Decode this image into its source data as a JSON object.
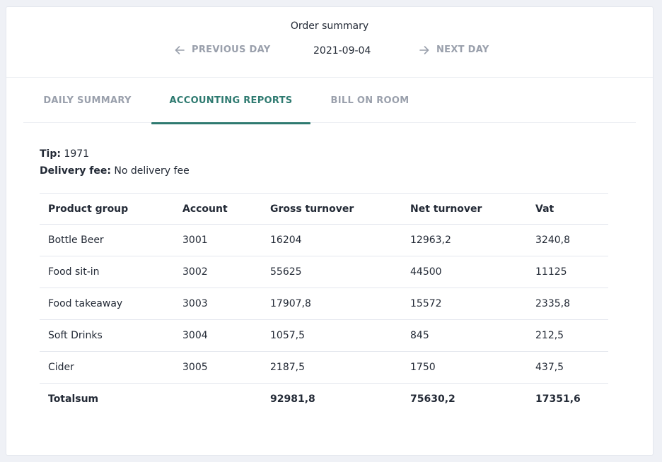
{
  "header": {
    "title": "Order summary",
    "prev_label": "PREVIOUS DAY",
    "next_label": "NEXT DAY",
    "date": "2021-09-04"
  },
  "tabs": [
    {
      "label": "DAILY SUMMARY",
      "active": false
    },
    {
      "label": "ACCOUNTING REPORTS",
      "active": true
    },
    {
      "label": "BILL ON ROOM",
      "active": false
    }
  ],
  "info": {
    "tip_label": "Tip:",
    "tip_value": "1971",
    "delivery_label": "Delivery fee:",
    "delivery_value": "No delivery fee"
  },
  "table": {
    "headers": [
      "Product group",
      "Account",
      "Gross turnover",
      "Net turnover",
      "Vat"
    ],
    "rows": [
      [
        "Bottle Beer",
        "3001",
        "16204",
        "12963,2",
        "3240,8"
      ],
      [
        "Food sit-in",
        "3002",
        "55625",
        "44500",
        "11125"
      ],
      [
        "Food takeaway",
        "3003",
        "17907,8",
        "15572",
        "2335,8"
      ],
      [
        "Soft Drinks",
        "3004",
        "1057,5",
        "845",
        "212,5"
      ],
      [
        "Cider",
        "3005",
        "2187,5",
        "1750",
        "437,5"
      ]
    ],
    "total": [
      "Totalsum",
      "",
      "92981,8",
      "75630,2",
      "17351,6"
    ]
  },
  "colors": {
    "accent": "#2e7a70",
    "muted": "#9aa0ac",
    "text": "#232a36",
    "background": "#eff1f6"
  }
}
